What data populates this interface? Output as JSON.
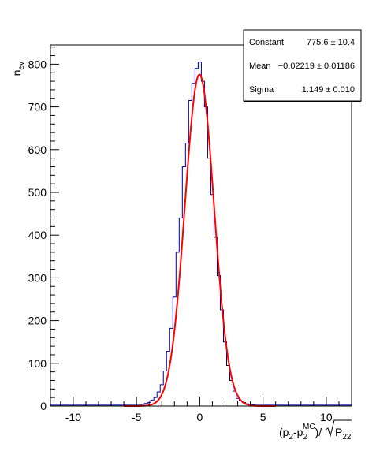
{
  "chart_data": {
    "type": "histogram",
    "title": "",
    "xlabel": "(p2-p2MC)/√P22",
    "xlabel_parts": {
      "open": "(p",
      "sub1": "2",
      "dash": "-p",
      "sub2": "2",
      "sup": "MC",
      "close": ")/",
      "radical_arg": "P",
      "radical_sub": "22"
    },
    "ylabel": "n_ev",
    "ylabel_parts": {
      "base": "n",
      "sub": "ev"
    },
    "xlim": [
      -11.8,
      12
    ],
    "ylim": [
      0,
      845
    ],
    "xticks": [
      -10,
      -5,
      0,
      5,
      10
    ],
    "yticks": [
      0,
      100,
      200,
      300,
      400,
      500,
      600,
      700,
      800
    ],
    "colors": {
      "histogram": "#000099",
      "fit": "#ff0000",
      "axis": "#000000"
    },
    "histogram": {
      "bin_width": 0.25,
      "bin_centers": [
        -4.5,
        -4.25,
        -4.0,
        -3.75,
        -3.5,
        -3.25,
        -3.0,
        -2.75,
        -2.5,
        -2.25,
        -2.0,
        -1.75,
        -1.5,
        -1.25,
        -1.0,
        -0.75,
        -0.5,
        -0.25,
        0.0,
        0.25,
        0.5,
        0.75,
        1.0,
        1.25,
        1.5,
        1.75,
        2.0,
        2.25,
        2.5,
        2.75,
        3.0,
        3.25,
        3.5,
        3.75,
        4.0,
        4.25,
        4.5
      ],
      "counts": [
        4,
        6,
        8,
        14,
        20,
        33,
        50,
        82,
        128,
        182,
        255,
        360,
        440,
        560,
        615,
        715,
        755,
        790,
        805,
        760,
        700,
        580,
        495,
        395,
        305,
        225,
        150,
        95,
        60,
        35,
        18,
        12,
        8,
        5,
        4,
        3,
        2
      ],
      "tail_level": 2
    },
    "fit": {
      "function": "gaus",
      "constant": 775.6,
      "mean": -0.02219,
      "sigma": 1.149
    },
    "stats_box": {
      "rows": [
        {
          "label": "Constant",
          "value": "775.6 ± 10.4"
        },
        {
          "label": "Mean",
          "value": "−0.02219 ± 0.01186"
        },
        {
          "label": "Sigma",
          "value": "1.149 ± 0.010"
        }
      ]
    }
  }
}
